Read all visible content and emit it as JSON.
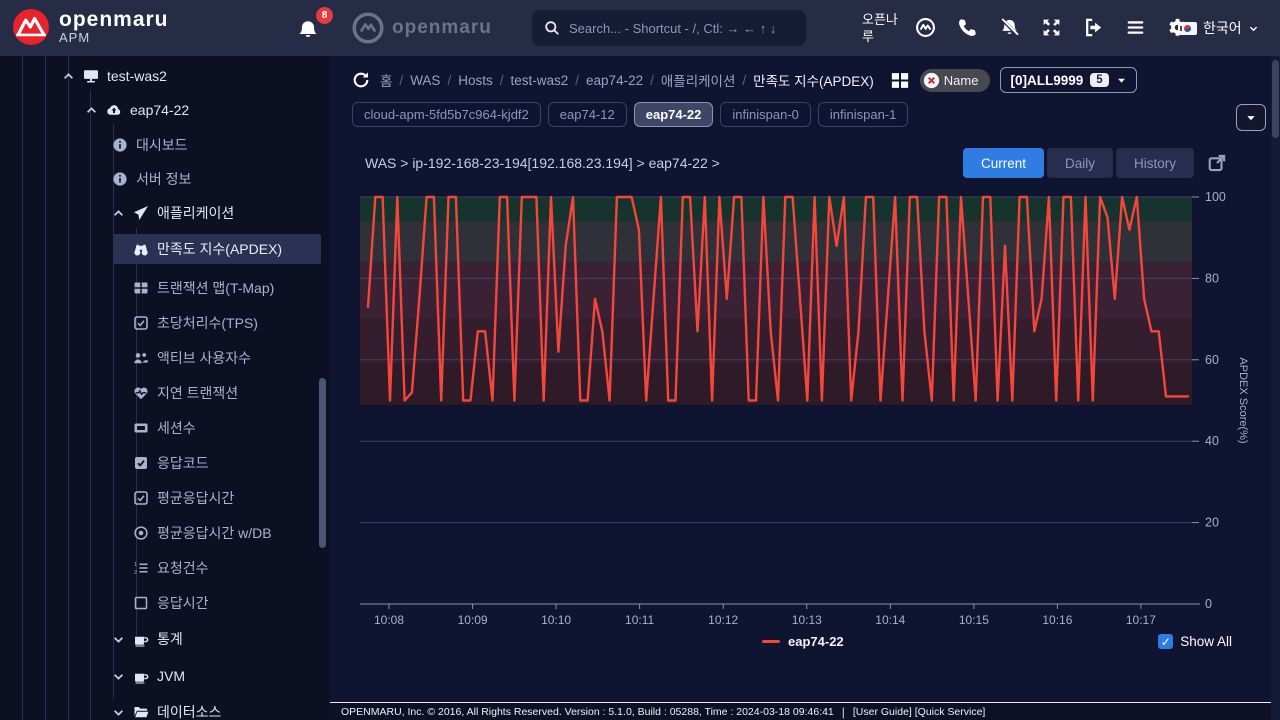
{
  "header": {
    "logo": {
      "title": "openmaru",
      "subtitle": "APM"
    },
    "notifications": {
      "count": "8"
    },
    "brand_center": "openmaru",
    "search": {
      "placeholder": "Search... - Shortcut - /, Ctl: → ← ↑ ↓"
    },
    "user_name": "오픈나루",
    "action_icons": [
      "apm-monitor",
      "phone",
      "notifications-off",
      "fullscreen",
      "logout",
      "menu",
      "settings"
    ],
    "language": {
      "label": "한국어"
    }
  },
  "sidebar": {
    "items": [
      {
        "label": "test-was2",
        "icon": "monitor",
        "level": 0,
        "expander": "up",
        "bright": true
      },
      {
        "label": "eap74-22",
        "icon": "cloud-upload",
        "level": 1,
        "expander": "up",
        "bright": true
      },
      {
        "label": "대시보드",
        "icon": "info-circle",
        "level": 2
      },
      {
        "label": "서버 정보",
        "icon": "info-circle",
        "level": 2
      },
      {
        "label": "애플리케이션",
        "icon": "send",
        "level": 2,
        "expander": "up",
        "bright": true
      },
      {
        "label": "만족도 지수(APDEX)",
        "icon": "binoculars",
        "level": 3,
        "selected": true
      },
      {
        "label": "트랜잭션 맵(T-Map)",
        "icon": "table",
        "level": 3
      },
      {
        "label": "초당처리수(TPS)",
        "icon": "check-square",
        "level": 3
      },
      {
        "label": "액티브 사용자수",
        "icon": "users",
        "level": 3
      },
      {
        "label": "지연 트랜잭션",
        "icon": "heart-pulse",
        "level": 3
      },
      {
        "label": "세션수",
        "icon": "ticket",
        "level": 3
      },
      {
        "label": "응답코드",
        "icon": "check-square-filled",
        "level": 3
      },
      {
        "label": "평균응답시간",
        "icon": "check-square",
        "level": 3
      },
      {
        "label": "평균응답시간 w/DB",
        "icon": "dot-circle",
        "level": 3
      },
      {
        "label": "요청건수",
        "icon": "list-ol",
        "level": 3
      },
      {
        "label": "응답시간",
        "icon": "square",
        "level": 3
      },
      {
        "label": "통계",
        "icon": "mug",
        "level": 2,
        "expander": "down",
        "bright": true
      },
      {
        "label": "JVM",
        "icon": "mug",
        "level": 2,
        "expander": "down",
        "bright": true
      },
      {
        "label": "데이터소스",
        "icon": "folder-open",
        "level": 2,
        "expander": "down",
        "bright": true
      }
    ]
  },
  "toolbar": {
    "breadcrumb": [
      "홈",
      "WAS",
      "Hosts",
      "test-was2",
      "eap74-22",
      "애플리케이션",
      "만족도 지수(APDEX)"
    ],
    "name_filter_label": "Name",
    "instance_dropdown": {
      "label": "[0]ALL9999",
      "badge": "5"
    },
    "tabs": [
      {
        "label": "cloud-apm-5fd5b7c964-kjdf2"
      },
      {
        "label": "eap74-12"
      },
      {
        "label": "eap74-22",
        "active": true
      },
      {
        "label": "infinispan-0"
      },
      {
        "label": "infinispan-1"
      }
    ]
  },
  "view": {
    "title_path": "WAS > ip-192-168-23-194[192.168.23.194] > eap74-22 >",
    "buttons": [
      {
        "label": "Current",
        "active": true
      },
      {
        "label": "Daily"
      },
      {
        "label": "History"
      }
    ]
  },
  "chart_data": {
    "type": "line",
    "title": "",
    "xlabel": "",
    "ylabel": "APDEX Score(%)",
    "ylim": [
      0,
      100
    ],
    "grid": true,
    "legend_position": "bottom-center",
    "x_ticks": [
      "10:08",
      "10:09",
      "10:10",
      "10:11",
      "10:12",
      "10:13",
      "10:14",
      "10:15",
      "10:16",
      "10:17"
    ],
    "y_ticks": [
      0,
      20,
      40,
      60,
      80,
      100
    ],
    "bands": [
      {
        "from": 94,
        "to": 100,
        "color": "#17332e"
      },
      {
        "from": 84,
        "to": 94,
        "color": "#303039"
      },
      {
        "from": 70,
        "to": 84,
        "color": "#3a2134"
      },
      {
        "from": 59,
        "to": 70,
        "color": "#341d2d"
      },
      {
        "from": 49,
        "to": 59,
        "color": "#2f1a27"
      }
    ],
    "series": [
      {
        "name": "eap74-22",
        "color": "#f4473b",
        "values": [
          73,
          100,
          100,
          50,
          100,
          50,
          52,
          75,
          100,
          100,
          50,
          100,
          100,
          50,
          50,
          67,
          67,
          50,
          100,
          100,
          50,
          100,
          100,
          100,
          50,
          100,
          62,
          88,
          100,
          50,
          50,
          75,
          67,
          50,
          100,
          100,
          100,
          92,
          50,
          75,
          100,
          50,
          50,
          100,
          100,
          67,
          100,
          50,
          100,
          75,
          100,
          100,
          50,
          50,
          100,
          67,
          50,
          100,
          100,
          75,
          50,
          100,
          50,
          100,
          88,
          100,
          50,
          67,
          100,
          100,
          50,
          75,
          100,
          50,
          100,
          100,
          67,
          50,
          100,
          100,
          50,
          100,
          75,
          50,
          100,
          100,
          50,
          88,
          50,
          100,
          100,
          67,
          75,
          100,
          50,
          100,
          100,
          50,
          100,
          50,
          100,
          95,
          75,
          100,
          92,
          100,
          75,
          67,
          67,
          51,
          51,
          51,
          51
        ]
      }
    ]
  },
  "show_all_label": "Show All",
  "footer": {
    "text": "OPENMARU, Inc. © 2016, All Rights Reserved. Version : 5.1.0, Build : 05288, Time : 2024-03-18 09:46:41",
    "links": "[User Guide] [Quick Service]"
  }
}
